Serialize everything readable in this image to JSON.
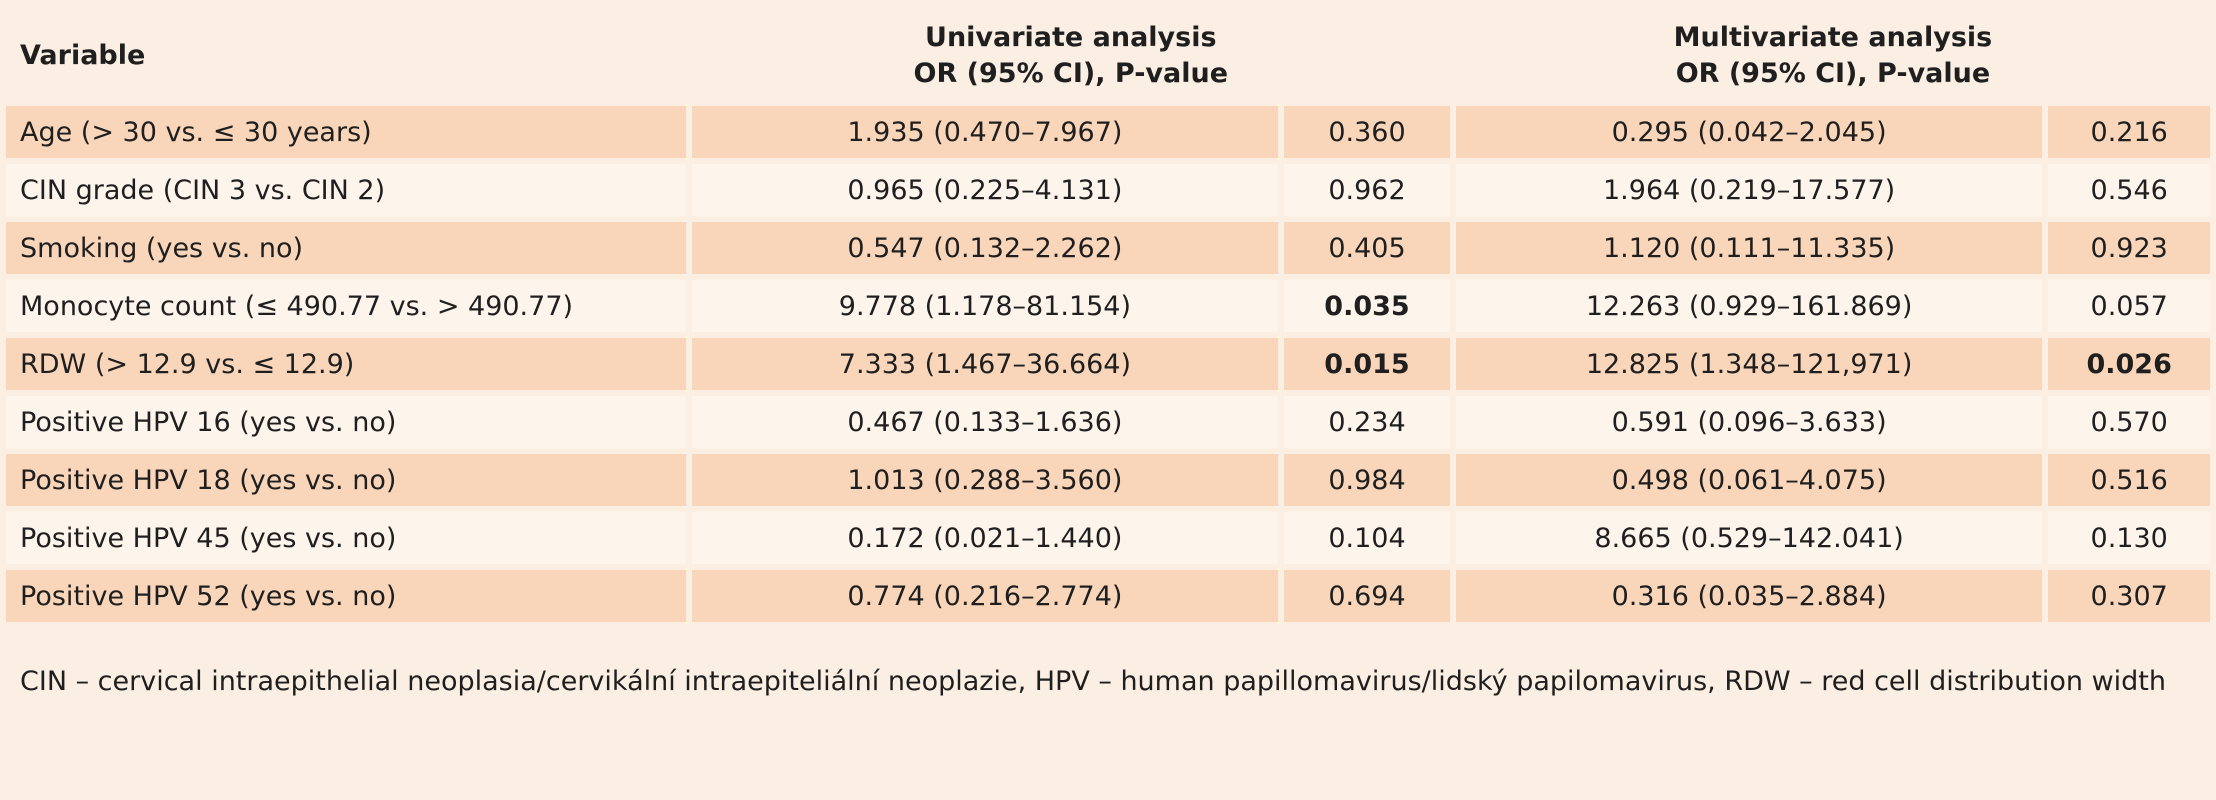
{
  "header": {
    "variable": "Variable",
    "univariate_line1": "Univariate analysis",
    "univariate_line2": "OR (95% CI), P-value",
    "multivariate_line1": "Multivariate analysis",
    "multivariate_line2": "OR (95% CI), P-value"
  },
  "rows": [
    {
      "variable": "Age (> 30 vs. ≤ 30 years)",
      "uni_or": "1.935 (0.470–7.967)",
      "uni_p": "0.360",
      "multi_or": "0.295 (0.042–2.045)",
      "multi_p": "0.216"
    },
    {
      "variable": "CIN grade (CIN 3 vs. CIN 2)",
      "uni_or": "0.965 (0.225–4.131)",
      "uni_p": "0.962",
      "multi_or": "1.964 (0.219–17.577)",
      "multi_p": "0.546"
    },
    {
      "variable": "Smoking (yes vs. no)",
      "uni_or": "0.547 (0.132–2.262)",
      "uni_p": "0.405",
      "multi_or": "1.120 (0.111–11.335)",
      "multi_p": "0.923"
    },
    {
      "variable": "Monocyte count (≤ 490.77 vs. > 490.77)",
      "uni_or": "9.778 (1.178–81.154)",
      "uni_p": "0.035",
      "multi_or": "12.263 (0.929–161.869)",
      "multi_p": "0.057"
    },
    {
      "variable": "RDW (> 12.9 vs. ≤ 12.9)",
      "uni_or": "7.333 (1.467–36.664)",
      "uni_p": "0.015",
      "multi_or": "12.825 (1.348–121,971)",
      "multi_p": "0.026"
    },
    {
      "variable": "Positive HPV 16 (yes vs. no)",
      "uni_or": "0.467 (0.133–1.636)",
      "uni_p": "0.234",
      "multi_or": "0.591 (0.096–3.633)",
      "multi_p": "0.570"
    },
    {
      "variable": "Positive HPV 18 (yes vs. no)",
      "uni_or": "1.013 (0.288–3.560)",
      "uni_p": "0.984",
      "multi_or": "0.498 (0.061–4.075)",
      "multi_p": "0.516"
    },
    {
      "variable": "Positive HPV 45 (yes vs. no)",
      "uni_or": "0.172 (0.021–1.440)",
      "uni_p": "0.104",
      "multi_or": "8.665 (0.529–142.041)",
      "multi_p": "0.130"
    },
    {
      "variable": "Positive HPV 52 (yes vs. no)",
      "uni_or": "0.774 (0.216–2.774)",
      "uni_p": "0.694",
      "multi_or": "0.316 (0.035–2.884)",
      "multi_p": "0.307"
    }
  ],
  "footnote": "CIN – cervical intraepithelial neoplasia/cervikální intraepiteliální neoplazie, HPV – human papillomavirus/lidský papilomavirus, RDW – red cell distribution width",
  "colors": {
    "background": "#fbeee3",
    "row_shaded": "#f9d6ba",
    "row_light": "#fdf4ec"
  }
}
